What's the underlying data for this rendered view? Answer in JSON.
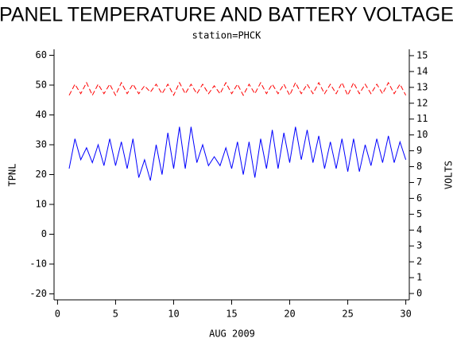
{
  "chart_data": {
    "type": "line",
    "title": "PANEL TEMPERATURE AND BATTERY VOLTAGE",
    "subtitle": "station=PHCK",
    "xlabel": "AUG 2009",
    "ylabel": "TPNL",
    "y2label": "VOLTS",
    "x": [
      1,
      1.5,
      2,
      2.5,
      3,
      3.5,
      4,
      4.5,
      5,
      5.5,
      6,
      6.5,
      7,
      7.5,
      8,
      8.5,
      9,
      9.5,
      10,
      10.5,
      11,
      11.5,
      12,
      12.5,
      13,
      13.5,
      14,
      14.5,
      15,
      15.5,
      16,
      16.5,
      17,
      17.5,
      18,
      18.5,
      19,
      19.5,
      20,
      20.5,
      21,
      21.5,
      22,
      22.5,
      23,
      23.5,
      24,
      24.5,
      25,
      25.5,
      26,
      26.5,
      27,
      27.5,
      28,
      28.5,
      29,
      29.5,
      30
    ],
    "series": [
      {
        "name": "TPNL",
        "color": "#0000ff",
        "dashed": false,
        "values": [
          22,
          32,
          25,
          29,
          24,
          30,
          23,
          32,
          23,
          31,
          22,
          32,
          19,
          25,
          18,
          30,
          20,
          34,
          22,
          36,
          22,
          36,
          24,
          30,
          23,
          26,
          23,
          29,
          22,
          31,
          20,
          31,
          19,
          32,
          22,
          35,
          22,
          34,
          24,
          36,
          25,
          35,
          24,
          33,
          22,
          31,
          22,
          32,
          21,
          32,
          21,
          30,
          23,
          32,
          24,
          33,
          24,
          31,
          25
        ]
      },
      {
        "name": "VOLTS",
        "color": "#ff0000",
        "dashed": true,
        "axis": "y2",
        "values": [
          12.5,
          13.2,
          12.6,
          13.3,
          12.5,
          13.2,
          12.6,
          13.2,
          12.5,
          13.3,
          12.6,
          13.2,
          12.6,
          13.1,
          12.7,
          13.2,
          12.6,
          13.2,
          12.5,
          13.3,
          12.6,
          13.2,
          12.6,
          13.2,
          12.6,
          13.1,
          12.6,
          13.3,
          12.6,
          13.2,
          12.5,
          13.2,
          12.6,
          13.3,
          12.6,
          13.2,
          12.6,
          13.2,
          12.5,
          13.3,
          12.6,
          13.2,
          12.6,
          13.3,
          12.6,
          13.2,
          12.6,
          13.3,
          12.5,
          13.3,
          12.6,
          13.2,
          12.6,
          13.2,
          12.6,
          13.3,
          12.6,
          13.2,
          12.5
        ]
      }
    ],
    "xlim": [
      -0.3,
      30.3
    ],
    "xticks": [
      0,
      5,
      10,
      15,
      20,
      25,
      30
    ],
    "ylim": [
      -22,
      62
    ],
    "yticks": [
      -20,
      -10,
      0,
      10,
      20,
      30,
      40,
      50,
      60
    ],
    "y2lim": [
      -0.4,
      15.4
    ],
    "y2ticks": [
      0,
      1,
      2,
      3,
      4,
      5,
      6,
      7,
      8,
      9,
      10,
      11,
      12,
      13,
      14,
      15
    ]
  }
}
